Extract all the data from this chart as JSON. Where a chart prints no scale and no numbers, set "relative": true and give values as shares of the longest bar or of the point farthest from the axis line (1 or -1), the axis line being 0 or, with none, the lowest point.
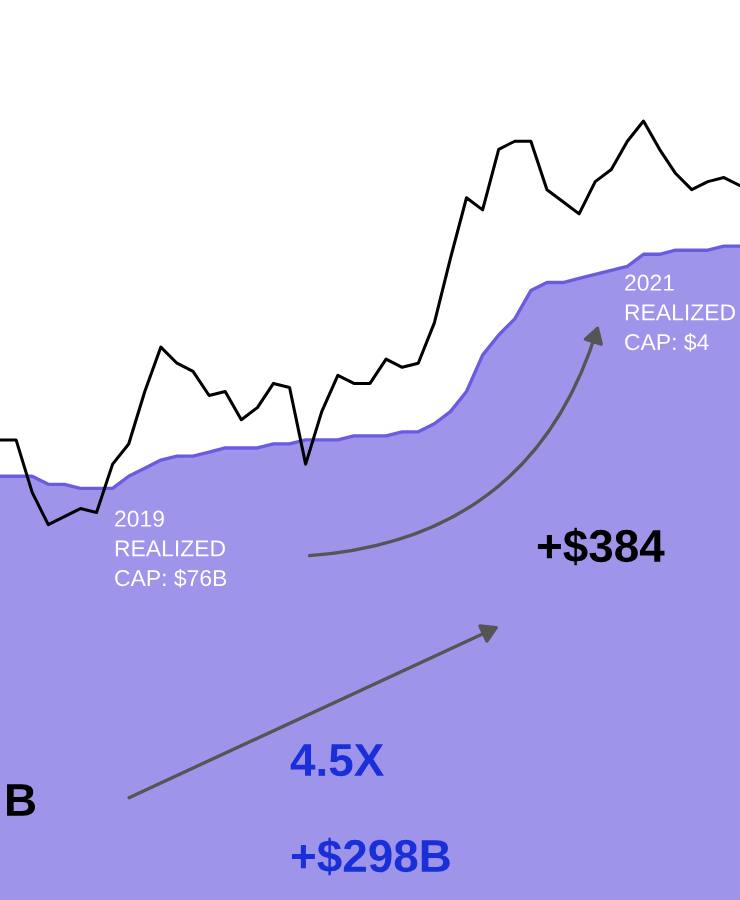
{
  "chart_data": {
    "type": "line",
    "relative": true,
    "categories": [
      null,
      null,
      null,
      null,
      null,
      null,
      null,
      null,
      null,
      null,
      null,
      null,
      null,
      null,
      null,
      null,
      null,
      null,
      null,
      null,
      null,
      null,
      null,
      null,
      null,
      null,
      null,
      null,
      null,
      null,
      null,
      null,
      null,
      null,
      null,
      null,
      null,
      null,
      null,
      null,
      null,
      null,
      null,
      null,
      null,
      null,
      null
    ],
    "series": [
      {
        "type": "area",
        "color": "#6a5ce0",
        "values": [
          0.12,
          0.12,
          0.12,
          0.1,
          0.1,
          0.09,
          0.09,
          0.09,
          0.12,
          0.14,
          0.16,
          0.17,
          0.17,
          0.18,
          0.19,
          0.19,
          0.19,
          0.2,
          0.2,
          0.21,
          0.21,
          0.21,
          0.22,
          0.22,
          0.22,
          0.23,
          0.23,
          0.25,
          0.28,
          0.33,
          0.42,
          0.47,
          0.51,
          0.58,
          0.6,
          0.6,
          0.61,
          0.62,
          0.63,
          0.64,
          0.67,
          0.67,
          0.68,
          0.68,
          0.68,
          0.69,
          0.69
        ]
      },
      {
        "color": "#000000",
        "values": [
          0.21,
          0.21,
          0.08,
          0.0,
          0.02,
          0.04,
          0.03,
          0.15,
          0.2,
          0.33,
          0.44,
          0.4,
          0.38,
          0.32,
          0.33,
          0.26,
          0.29,
          0.35,
          0.34,
          0.15,
          0.28,
          0.37,
          0.35,
          0.35,
          0.41,
          0.39,
          0.4,
          0.5,
          0.66,
          0.81,
          0.78,
          0.93,
          0.95,
          0.95,
          0.83,
          0.8,
          0.77,
          0.85,
          0.88,
          0.95,
          1.0,
          0.93,
          0.87,
          0.83,
          0.85,
          0.86,
          0.84
        ]
      }
    ],
    "annotations": [
      "2019\nREALIZED\nCAP: $76B",
      "2021\nREALIZED\nCAP: $4",
      "+$384",
      "B",
      "4.5X",
      "+$298B"
    ]
  }
}
